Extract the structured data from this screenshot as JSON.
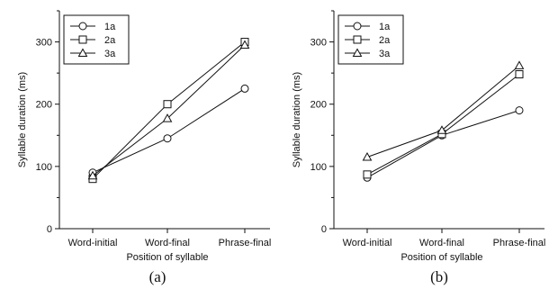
{
  "chart_data": [
    {
      "type": "line",
      "caption": "(a)",
      "categories": [
        "Word-initial",
        "Word-final",
        "Phrase-final"
      ],
      "xlabel": "Position of syllable",
      "ylabel": "Syllable duration (ms)",
      "ylim": [
        0,
        350
      ],
      "yticks": [
        0,
        100,
        200,
        300
      ],
      "grid": false,
      "legend_position": "top-left",
      "series": [
        {
          "name": "1a",
          "marker": "circle",
          "values": [
            90,
            145,
            225
          ]
        },
        {
          "name": "2a",
          "marker": "square",
          "values": [
            80,
            200,
            300
          ]
        },
        {
          "name": "3a",
          "marker": "triangle",
          "values": [
            85,
            177,
            295
          ]
        }
      ]
    },
    {
      "type": "line",
      "caption": "(b)",
      "categories": [
        "Word-initial",
        "Word-final",
        "Phrase-final"
      ],
      "xlabel": "Position of syllable",
      "ylabel": "Syllable duration (ms)",
      "ylim": [
        0,
        350
      ],
      "yticks": [
        0,
        100,
        200,
        300
      ],
      "grid": false,
      "legend_position": "top-left",
      "series": [
        {
          "name": "1a",
          "marker": "circle",
          "values": [
            82,
            150,
            190
          ]
        },
        {
          "name": "2a",
          "marker": "square",
          "values": [
            87,
            152,
            248
          ]
        },
        {
          "name": "3a",
          "marker": "triangle",
          "values": [
            115,
            158,
            262
          ]
        }
      ]
    }
  ]
}
